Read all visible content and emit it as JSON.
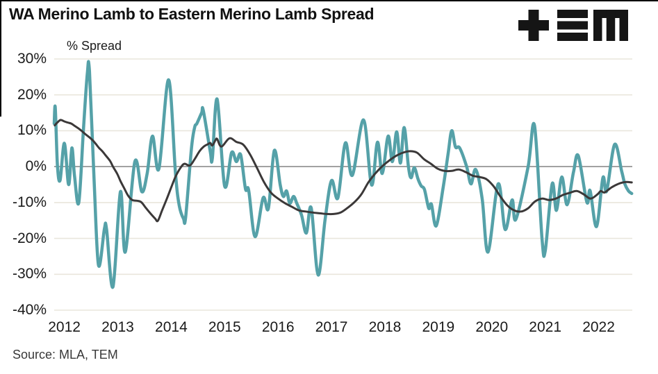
{
  "title": "WA Merino Lamb to Eastern Merino Lamb Spread",
  "source_note": "Source: MLA, TEM",
  "logo": {
    "name": "tem-logo",
    "color": "#151515"
  },
  "colors": {
    "spread_line": "#55A1A8",
    "trend_line": "#3B3838",
    "grid": "#E9E6DC",
    "zero_line": "#8C8C8C",
    "text": "#1A1A1A"
  },
  "chart_data": {
    "type": "line",
    "title": "WA Merino Lamb to Eastern Merino Lamb Spread",
    "xlabel": "",
    "ylabel": "% Spread",
    "x_range": [
      2011.81,
      2022.63
    ],
    "y_range": [
      -40,
      30
    ],
    "grid": "horizontal-only",
    "legend": "none",
    "y_ticks": [
      {
        "value": 30,
        "label": "30%"
      },
      {
        "value": 20,
        "label": "20%"
      },
      {
        "value": 10,
        "label": "10%"
      },
      {
        "value": 0,
        "label": "0%"
      },
      {
        "value": -10,
        "label": "-10%"
      },
      {
        "value": -20,
        "label": "-20%"
      },
      {
        "value": -30,
        "label": "-30%"
      },
      {
        "value": -40,
        "label": "-40%"
      }
    ],
    "x_ticks": [
      {
        "value": 2012,
        "label": "2012"
      },
      {
        "value": 2013,
        "label": "2013"
      },
      {
        "value": 2014,
        "label": "2014"
      },
      {
        "value": 2015,
        "label": "2015"
      },
      {
        "value": 2016,
        "label": "2016"
      },
      {
        "value": 2017,
        "label": "2017"
      },
      {
        "value": 2018,
        "label": "2018"
      },
      {
        "value": 2019,
        "label": "2019"
      },
      {
        "value": 2020,
        "label": "2020"
      },
      {
        "value": 2021,
        "label": "2021"
      },
      {
        "value": 2022,
        "label": "2022"
      }
    ],
    "series": [
      {
        "name": "wa-to-eastern-merino-lamb-spread",
        "color": "#55A1A8",
        "stroke_width": 4.5,
        "points": [
          [
            2011.81,
            12.0
          ],
          [
            2011.83,
            16.5
          ],
          [
            2011.87,
            0.5
          ],
          [
            2011.92,
            -3.8
          ],
          [
            2012.0,
            6.5
          ],
          [
            2012.08,
            -5.0
          ],
          [
            2012.14,
            5.2
          ],
          [
            2012.19,
            -2.5
          ],
          [
            2012.27,
            -10.0
          ],
          [
            2012.36,
            11.0
          ],
          [
            2012.43,
            26.0
          ],
          [
            2012.47,
            26.5
          ],
          [
            2012.56,
            -5.0
          ],
          [
            2012.64,
            -27.5
          ],
          [
            2012.75,
            -17.3
          ],
          [
            2012.79,
            -17.5
          ],
          [
            2012.91,
            -33.5
          ],
          [
            2013.05,
            -7.0
          ],
          [
            2013.14,
            -23.8
          ],
          [
            2013.32,
            1.4
          ],
          [
            2013.45,
            -7.0
          ],
          [
            2013.55,
            -1.9
          ],
          [
            2013.65,
            8.5
          ],
          [
            2013.77,
            -0.6
          ],
          [
            2013.95,
            24.2
          ],
          [
            2014.08,
            -1.9
          ],
          [
            2014.15,
            -10.8
          ],
          [
            2014.23,
            -14.5
          ],
          [
            2014.27,
            -14.1
          ],
          [
            2014.38,
            5.2
          ],
          [
            2014.44,
            11.0
          ],
          [
            2014.48,
            12.0
          ],
          [
            2014.57,
            15.0
          ],
          [
            2014.6,
            15.7
          ],
          [
            2014.73,
            4.3
          ],
          [
            2014.77,
            2.3
          ],
          [
            2014.86,
            18.8
          ],
          [
            2015.0,
            -5.4
          ],
          [
            2015.13,
            3.9
          ],
          [
            2015.22,
            1.4
          ],
          [
            2015.3,
            3.3
          ],
          [
            2015.39,
            -6.2
          ],
          [
            2015.45,
            -6.6
          ],
          [
            2015.57,
            -19.5
          ],
          [
            2015.72,
            -8.7
          ],
          [
            2015.82,
            -11.6
          ],
          [
            2015.93,
            4.5
          ],
          [
            2016.04,
            -5.1
          ],
          [
            2016.1,
            -8.3
          ],
          [
            2016.16,
            -6.8
          ],
          [
            2016.22,
            -10.2
          ],
          [
            2016.29,
            -8.3
          ],
          [
            2016.35,
            -10.2
          ],
          [
            2016.44,
            -13.5
          ],
          [
            2016.53,
            -18.5
          ],
          [
            2016.62,
            -11.5
          ],
          [
            2016.75,
            -30.2
          ],
          [
            2016.88,
            -14.7
          ],
          [
            2017.0,
            -3.9
          ],
          [
            2017.12,
            -8.7
          ],
          [
            2017.26,
            6.6
          ],
          [
            2017.39,
            -2.4
          ],
          [
            2017.6,
            13.0
          ],
          [
            2017.75,
            -5.1
          ],
          [
            2017.86,
            6.8
          ],
          [
            2017.95,
            -1.9
          ],
          [
            2018.06,
            8.5
          ],
          [
            2018.14,
            1.4
          ],
          [
            2018.22,
            9.7
          ],
          [
            2018.29,
            1.0
          ],
          [
            2018.36,
            10.9
          ],
          [
            2018.44,
            0.0
          ],
          [
            2018.49,
            -3.1
          ],
          [
            2018.55,
            -0.3
          ],
          [
            2018.62,
            -3.5
          ],
          [
            2018.68,
            -5.4
          ],
          [
            2018.74,
            -6.4
          ],
          [
            2018.82,
            -11.6
          ],
          [
            2018.87,
            -10.5
          ],
          [
            2018.96,
            -16.5
          ],
          [
            2019.09,
            -5.8
          ],
          [
            2019.18,
            3.3
          ],
          [
            2019.25,
            10.0
          ],
          [
            2019.32,
            5.5
          ],
          [
            2019.4,
            5.2
          ],
          [
            2019.53,
            0.0
          ],
          [
            2019.61,
            -4.8
          ],
          [
            2019.7,
            -0.8
          ],
          [
            2019.82,
            -8.9
          ],
          [
            2019.93,
            -23.8
          ],
          [
            2020.12,
            -4.8
          ],
          [
            2020.25,
            -17.5
          ],
          [
            2020.38,
            -9.3
          ],
          [
            2020.45,
            -14.7
          ],
          [
            2020.68,
            0.0
          ],
          [
            2020.8,
            11.4
          ],
          [
            2020.94,
            -19.9
          ],
          [
            2021.0,
            -23.5
          ],
          [
            2021.13,
            -4.8
          ],
          [
            2021.21,
            -12.2
          ],
          [
            2021.31,
            -2.9
          ],
          [
            2021.41,
            -10.6
          ],
          [
            2021.53,
            -1.5
          ],
          [
            2021.62,
            3.0
          ],
          [
            2021.78,
            -9.9
          ],
          [
            2021.84,
            -6.7
          ],
          [
            2021.96,
            -16.7
          ],
          [
            2022.08,
            -3.1
          ],
          [
            2022.15,
            -6.8
          ],
          [
            2022.3,
            6.2
          ],
          [
            2022.43,
            -1.2
          ],
          [
            2022.49,
            -4.8
          ],
          [
            2022.56,
            -6.8
          ],
          [
            2022.62,
            -7.5
          ]
        ]
      },
      {
        "name": "smoothed-trend",
        "color": "#3B3838",
        "stroke_width": 3,
        "points": [
          [
            2011.82,
            11.5
          ],
          [
            2011.87,
            12.3
          ],
          [
            2011.93,
            13.0
          ],
          [
            2012.0,
            12.6
          ],
          [
            2012.06,
            12.3
          ],
          [
            2012.13,
            12.0
          ],
          [
            2012.19,
            11.4
          ],
          [
            2012.26,
            10.7
          ],
          [
            2012.32,
            10.0
          ],
          [
            2012.39,
            9.1
          ],
          [
            2012.45,
            8.4
          ],
          [
            2012.52,
            7.5
          ],
          [
            2012.58,
            6.5
          ],
          [
            2012.65,
            5.2
          ],
          [
            2012.71,
            4.3
          ],
          [
            2012.78,
            3.0
          ],
          [
            2012.86,
            1.5
          ],
          [
            2012.91,
            0.0
          ],
          [
            2012.99,
            -2.0
          ],
          [
            2013.05,
            -4.0
          ],
          [
            2013.12,
            -6.0
          ],
          [
            2013.19,
            -8.0
          ],
          [
            2013.27,
            -9.3
          ],
          [
            2013.36,
            -9.5
          ],
          [
            2013.44,
            -9.9
          ],
          [
            2013.53,
            -11.6
          ],
          [
            2013.62,
            -13.2
          ],
          [
            2013.7,
            -14.5
          ],
          [
            2013.75,
            -15.1
          ],
          [
            2013.83,
            -12.2
          ],
          [
            2013.92,
            -8.9
          ],
          [
            2014.01,
            -5.4
          ],
          [
            2014.09,
            -2.5
          ],
          [
            2014.18,
            -0.2
          ],
          [
            2014.25,
            0.8
          ],
          [
            2014.35,
            0.3
          ],
          [
            2014.44,
            2.1
          ],
          [
            2014.53,
            4.3
          ],
          [
            2014.61,
            5.6
          ],
          [
            2014.68,
            6.2
          ],
          [
            2014.73,
            6.6
          ],
          [
            2014.77,
            5.9
          ],
          [
            2014.83,
            7.4
          ],
          [
            2014.86,
            7.7
          ],
          [
            2014.94,
            5.6
          ],
          [
            2015.09,
            7.9
          ],
          [
            2015.22,
            6.9
          ],
          [
            2015.35,
            6.1
          ],
          [
            2015.48,
            3.3
          ],
          [
            2015.61,
            -0.5
          ],
          [
            2015.74,
            -4.4
          ],
          [
            2015.87,
            -7.3
          ],
          [
            2016.0,
            -8.9
          ],
          [
            2016.13,
            -10.2
          ],
          [
            2016.26,
            -11.2
          ],
          [
            2016.39,
            -12.2
          ],
          [
            2016.52,
            -12.5
          ],
          [
            2016.65,
            -12.8
          ],
          [
            2016.78,
            -13.0
          ],
          [
            2016.91,
            -13.2
          ],
          [
            2017.04,
            -13.2
          ],
          [
            2017.17,
            -12.8
          ],
          [
            2017.3,
            -11.5
          ],
          [
            2017.43,
            -9.9
          ],
          [
            2017.56,
            -7.7
          ],
          [
            2017.69,
            -4.4
          ],
          [
            2017.82,
            -1.9
          ],
          [
            2017.95,
            0.1
          ],
          [
            2018.08,
            1.7
          ],
          [
            2018.21,
            3.0
          ],
          [
            2018.34,
            3.9
          ],
          [
            2018.47,
            4.3
          ],
          [
            2018.6,
            3.9
          ],
          [
            2018.73,
            2.1
          ],
          [
            2018.86,
            0.8
          ],
          [
            2018.99,
            -0.6
          ],
          [
            2019.12,
            -1.2
          ],
          [
            2019.25,
            -1.2
          ],
          [
            2019.38,
            -0.8
          ],
          [
            2019.51,
            -1.5
          ],
          [
            2019.64,
            -2.5
          ],
          [
            2019.77,
            -2.9
          ],
          [
            2019.9,
            -3.5
          ],
          [
            2020.03,
            -5.4
          ],
          [
            2020.16,
            -8.3
          ],
          [
            2020.29,
            -10.8
          ],
          [
            2020.42,
            -12.2
          ],
          [
            2020.55,
            -12.5
          ],
          [
            2020.68,
            -11.6
          ],
          [
            2020.81,
            -9.7
          ],
          [
            2020.94,
            -8.9
          ],
          [
            2021.07,
            -9.3
          ],
          [
            2021.2,
            -8.9
          ],
          [
            2021.33,
            -7.9
          ],
          [
            2021.46,
            -7.3
          ],
          [
            2021.59,
            -6.8
          ],
          [
            2021.72,
            -7.7
          ],
          [
            2021.85,
            -8.9
          ],
          [
            2021.98,
            -7.7
          ],
          [
            2022.04,
            -6.8
          ],
          [
            2022.11,
            -7.2
          ],
          [
            2022.24,
            -5.8
          ],
          [
            2022.37,
            -4.8
          ],
          [
            2022.5,
            -4.3
          ],
          [
            2022.62,
            -4.4
          ]
        ]
      }
    ]
  }
}
